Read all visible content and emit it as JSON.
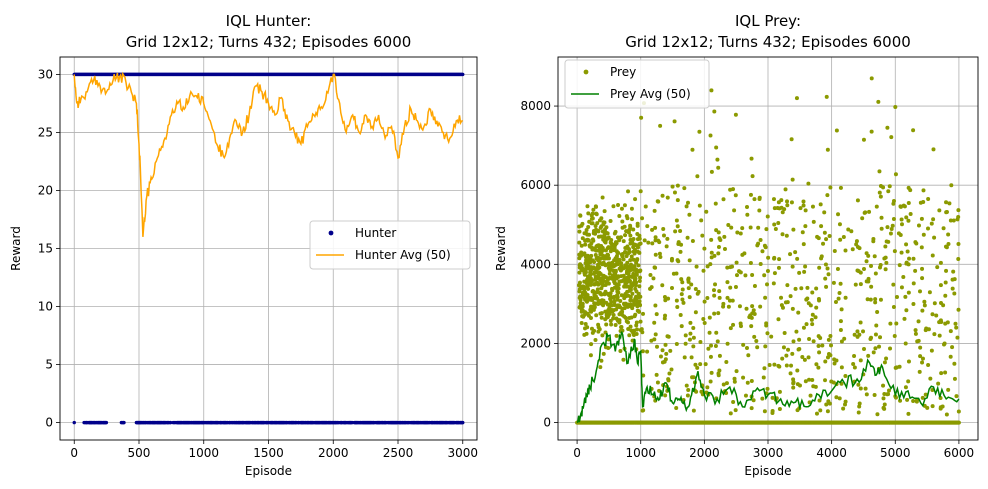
{
  "chart_data": [
    {
      "type": "scatter",
      "title_line1": "IQL Hunter:",
      "title_line2": "Grid 12x12; Turns 432; Episodes 6000",
      "xlabel": "Episode",
      "ylabel": "Reward",
      "xlim": [
        -110,
        3110
      ],
      "ylim": [
        -1.5,
        31.5
      ],
      "xticks": [
        "0",
        "500",
        "1000",
        "1500",
        "2000",
        "2500",
        "3000"
      ],
      "xtick_values": [
        0,
        500,
        1000,
        1500,
        2000,
        2500,
        3000
      ],
      "yticks": [
        "0",
        "5",
        "10",
        "15",
        "20",
        "25",
        "30"
      ],
      "ytick_values": [
        0,
        5,
        10,
        15,
        20,
        25,
        30
      ],
      "grid": true,
      "legend_position": "center-right",
      "series": [
        {
          "name": "Hunter",
          "kind": "scatter",
          "color": "#00008b",
          "reward_levels": [
            0,
            30
          ],
          "x_range": [
            0,
            3000
          ]
        },
        {
          "name": "Hunter Avg (50)",
          "kind": "line",
          "color": "#ffa500",
          "x": [
            0,
            20,
            50,
            100,
            150,
            200,
            250,
            300,
            350,
            400,
            450,
            480,
            500,
            510,
            530,
            560,
            600,
            650,
            700,
            750,
            800,
            850,
            900,
            950,
            1000,
            1050,
            1100,
            1150,
            1200,
            1250,
            1300,
            1350,
            1400,
            1450,
            1500,
            1550,
            1600,
            1650,
            1700,
            1750,
            1800,
            1850,
            1900,
            1950,
            2000,
            2050,
            2100,
            2150,
            2200,
            2250,
            2300,
            2350,
            2400,
            2450,
            2500,
            2550,
            2600,
            2650,
            2700,
            2750,
            2800,
            2850,
            2900,
            2950,
            3000
          ],
          "y": [
            30,
            27.5,
            27.8,
            28.5,
            29.5,
            29,
            28.5,
            29.5,
            29.8,
            29.3,
            28.2,
            27.5,
            24,
            22,
            16,
            19.5,
            21,
            23,
            24.5,
            26.5,
            27.5,
            27,
            28.5,
            28,
            27.5,
            26,
            24,
            23,
            24.5,
            26,
            25,
            26.5,
            29,
            28.5,
            27.5,
            26.5,
            28,
            26,
            25,
            24,
            25.5,
            26.5,
            27,
            28.5,
            30,
            27.5,
            25,
            26.5,
            25,
            26.5,
            25.5,
            26.5,
            24.5,
            25.5,
            22.8,
            25.5,
            27,
            26,
            25.5,
            27,
            26,
            25,
            24.5,
            26,
            26
          ]
        }
      ]
    },
    {
      "type": "scatter",
      "title_line1": "IQL Prey:",
      "title_line2": "Grid 12x12; Turns 432; Episodes 6000",
      "xlabel": "Episode",
      "ylabel": "Reward",
      "xlim": [
        -300,
        6300
      ],
      "ylim": [
        -440,
        9240
      ],
      "xticks": [
        "0",
        "1000",
        "2000",
        "3000",
        "4000",
        "5000",
        "6000"
      ],
      "xtick_values": [
        0,
        1000,
        2000,
        3000,
        4000,
        5000,
        6000
      ],
      "yticks": [
        "0",
        "2000",
        "4000",
        "6000",
        "8000"
      ],
      "ytick_values": [
        0,
        2000,
        4000,
        6000,
        8000
      ],
      "grid": true,
      "legend_position": "upper-left",
      "series": [
        {
          "name": "Prey",
          "kind": "scatter",
          "color": "#8b9a00",
          "x_range": [
            0,
            6000
          ],
          "max_value": 8700,
          "dense_region": [
            0,
            1000
          ]
        },
        {
          "name": "Prey Avg (50)",
          "kind": "line",
          "color": "#008000",
          "x": [
            0,
            50,
            100,
            150,
            200,
            300,
            400,
            500,
            600,
            700,
            800,
            900,
            950,
            1000,
            1030,
            1100,
            1200,
            1300,
            1400,
            1500,
            1600,
            1700,
            1800,
            1900,
            2000,
            2200,
            2400,
            2600,
            2800,
            3000,
            3200,
            3400,
            3600,
            3800,
            4000,
            4200,
            4400,
            4600,
            4700,
            4800,
            5000,
            5200,
            5400,
            5600,
            5800,
            6000
          ],
          "y": [
            0,
            150,
            400,
            700,
            900,
            1300,
            2000,
            2200,
            1800,
            2300,
            1500,
            2100,
            1500,
            1800,
            400,
            900,
            700,
            600,
            1000,
            500,
            600,
            400,
            700,
            1300,
            700,
            600,
            900,
            400,
            800,
            700,
            600,
            500,
            400,
            700,
            800,
            1000,
            1100,
            1500,
            1200,
            1400,
            700,
            800,
            500,
            900,
            600,
            600
          ]
        }
      ]
    }
  ]
}
